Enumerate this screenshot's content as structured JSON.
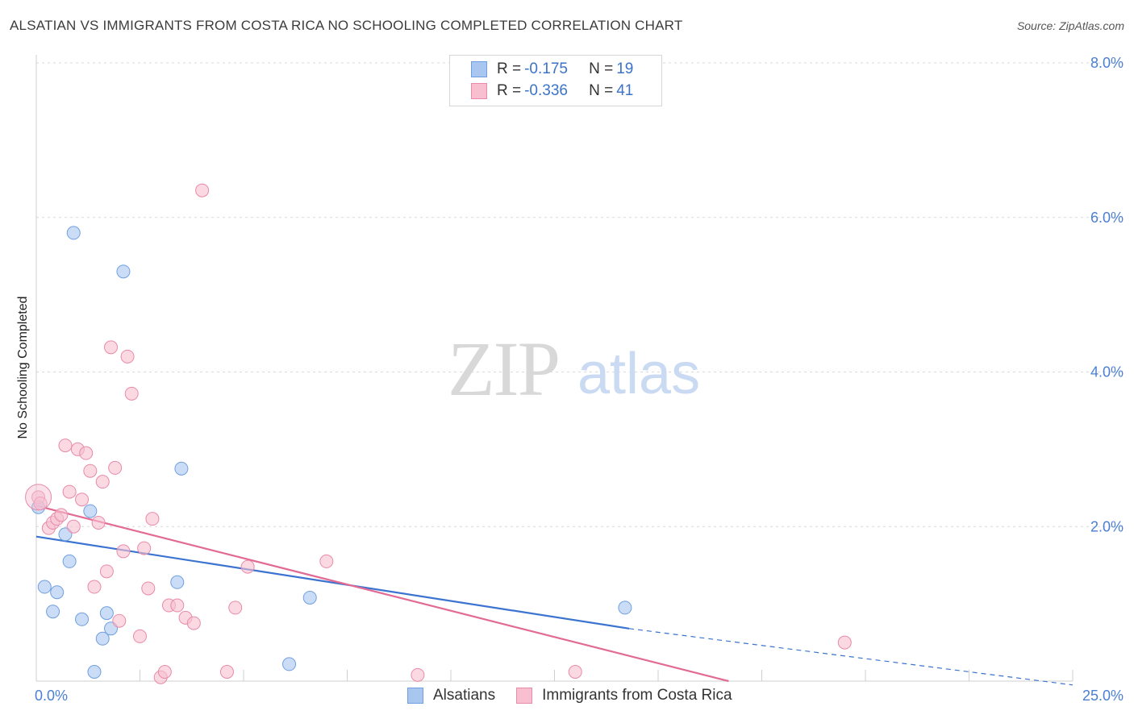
{
  "title": "ALSATIAN VS IMMIGRANTS FROM COSTA RICA NO SCHOOLING COMPLETED CORRELATION CHART",
  "source": "Source: ZipAtlas.com",
  "watermark": {
    "zip": "ZIP",
    "atlas": "atlas"
  },
  "legend": {
    "rows": [
      {
        "r_label": "R = ",
        "r_value": "-0.175",
        "n_label": "N = ",
        "n_value": "19",
        "color": "#a9c6f0",
        "border": "#6f9fe0"
      },
      {
        "r_label": "R = ",
        "r_value": "-0.336",
        "n_label": "N = ",
        "n_value": "41",
        "color": "#f7bfd0",
        "border": "#e98aa8"
      }
    ]
  },
  "bottom_legend": [
    {
      "label": "Alsatians",
      "color": "#a9c6f0",
      "border": "#6f9fe0"
    },
    {
      "label": "Immigrants from Costa Rica",
      "color": "#f7bfd0",
      "border": "#e98aa8"
    }
  ],
  "chart_data": {
    "type": "scatter",
    "title": "ALSATIAN VS IMMIGRANTS FROM COSTA RICA NO SCHOOLING COMPLETED CORRELATION CHART",
    "xlabel": "",
    "ylabel": "No Schooling Completed",
    "xlim": [
      0,
      25
    ],
    "ylim": [
      0,
      8
    ],
    "x_tick_labels": [
      "0.0%",
      "25.0%"
    ],
    "y_ticks": [
      2,
      4,
      6,
      8
    ],
    "y_tick_labels": [
      "2.0%",
      "4.0%",
      "6.0%",
      "8.0%"
    ],
    "grid": true,
    "series": [
      {
        "name": "Alsatians",
        "color": "#6f9fe0",
        "fill": "#a9c6f0",
        "points": [
          [
            0.05,
            2.25
          ],
          [
            0.2,
            1.22
          ],
          [
            0.4,
            0.9
          ],
          [
            0.5,
            1.15
          ],
          [
            0.7,
            1.9
          ],
          [
            0.8,
            1.55
          ],
          [
            0.9,
            5.8
          ],
          [
            1.1,
            0.8
          ],
          [
            1.3,
            2.2
          ],
          [
            1.4,
            0.12
          ],
          [
            1.6,
            0.55
          ],
          [
            1.7,
            0.88
          ],
          [
            1.8,
            0.68
          ],
          [
            2.1,
            5.3
          ],
          [
            3.4,
            1.28
          ],
          [
            3.5,
            2.75
          ],
          [
            6.1,
            0.22
          ],
          [
            6.6,
            1.08
          ],
          [
            14.2,
            0.95
          ]
        ],
        "trend": {
          "x0": 0,
          "y0": 1.87,
          "x1": 14.3,
          "y1": 0.68,
          "dash_x1": 25,
          "dash_y1": -0.05
        }
      },
      {
        "name": "Immigrants from Costa Rica",
        "color": "#e98aa8",
        "fill": "#f7bfd0",
        "points": [
          [
            0.05,
            2.38
          ],
          [
            0.1,
            2.3
          ],
          [
            0.3,
            1.98
          ],
          [
            0.4,
            2.05
          ],
          [
            0.5,
            2.1
          ],
          [
            0.6,
            2.15
          ],
          [
            0.7,
            3.05
          ],
          [
            0.8,
            2.45
          ],
          [
            0.9,
            2.0
          ],
          [
            1.0,
            3.0
          ],
          [
            1.1,
            2.35
          ],
          [
            1.2,
            2.95
          ],
          [
            1.3,
            2.72
          ],
          [
            1.4,
            1.22
          ],
          [
            1.5,
            2.05
          ],
          [
            1.6,
            2.58
          ],
          [
            1.7,
            1.42
          ],
          [
            1.8,
            4.32
          ],
          [
            1.9,
            2.76
          ],
          [
            2.0,
            0.78
          ],
          [
            2.1,
            1.68
          ],
          [
            2.2,
            4.2
          ],
          [
            2.3,
            3.72
          ],
          [
            2.5,
            0.58
          ],
          [
            2.6,
            1.72
          ],
          [
            2.7,
            1.2
          ],
          [
            2.8,
            2.1
          ],
          [
            3.0,
            0.05
          ],
          [
            3.1,
            0.12
          ],
          [
            3.2,
            0.98
          ],
          [
            3.4,
            0.98
          ],
          [
            3.6,
            0.82
          ],
          [
            3.8,
            0.75
          ],
          [
            4.0,
            6.35
          ],
          [
            4.6,
            0.12
          ],
          [
            4.8,
            0.95
          ],
          [
            5.1,
            1.48
          ],
          [
            7.0,
            1.55
          ],
          [
            9.2,
            0.08
          ],
          [
            13.0,
            0.12
          ],
          [
            19.5,
            0.5
          ]
        ],
        "trend": {
          "x0": 0,
          "y0": 2.27,
          "x1": 16.7,
          "y1": 0.0
        }
      }
    ]
  }
}
